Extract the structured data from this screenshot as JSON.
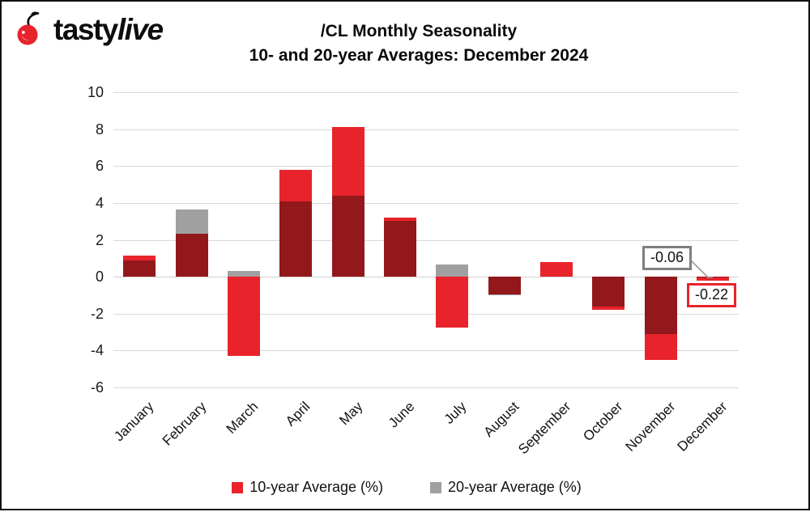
{
  "logo": {
    "brand_tasty": "tasty",
    "brand_live": "live"
  },
  "title": {
    "line1": "/CL Monthly Seasonality",
    "line2": "10- and 20-year Averages: December 2024"
  },
  "chart_data": {
    "type": "bar",
    "title": "/CL Monthly Seasonality",
    "subtitle": "10- and 20-year Averages: December 2024",
    "categories": [
      "January",
      "February",
      "March",
      "April",
      "May",
      "June",
      "July",
      "August",
      "September",
      "October",
      "November",
      "December"
    ],
    "series": [
      {
        "name": "10-year Average (%)",
        "color": "#e8232b",
        "values": [
          1.15,
          2.35,
          -4.3,
          5.8,
          8.1,
          3.2,
          -2.75,
          -0.95,
          0.8,
          -1.8,
          -4.5,
          -0.22
        ]
      },
      {
        "name": "20-year Average (%)",
        "color": "#a0a0a0",
        "values": [
          0.9,
          3.65,
          0.3,
          4.1,
          4.4,
          3.05,
          0.65,
          -1.0,
          0.0,
          -1.6,
          -3.1,
          -0.06
        ]
      }
    ],
    "overlap_color": "#92181c",
    "ylim": [
      -6,
      10
    ],
    "yticks": [
      10,
      8,
      6,
      4,
      2,
      0,
      -2,
      -4,
      -6
    ],
    "grid": true,
    "legend_position": "bottom",
    "annotations": [
      {
        "text": "-0.06",
        "month": "December",
        "series": "20-year Average (%)",
        "value": -0.06,
        "box_color": "#7f7f7f"
      },
      {
        "text": "-0.22",
        "month": "December",
        "series": "10-year Average (%)",
        "value": -0.22,
        "box_color": "#e8232b"
      }
    ]
  },
  "colors": {
    "red": "#e8232b",
    "gray": "#a0a0a0",
    "overlap": "#92181c",
    "gridline": "#d9d9d9"
  }
}
